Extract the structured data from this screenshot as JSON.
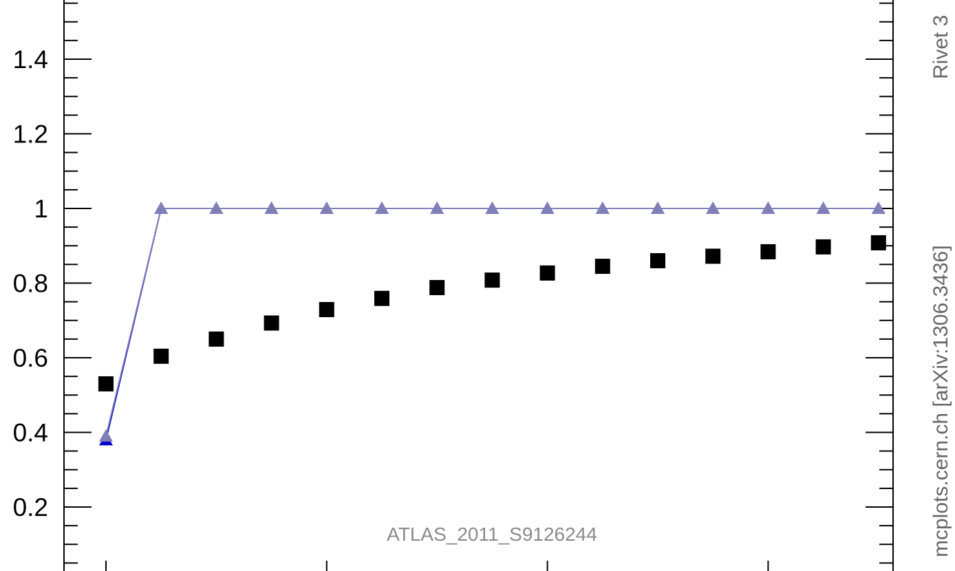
{
  "chart_data": {
    "type": "scatter",
    "title": "",
    "xlabel": "",
    "ylabel": "",
    "xlim": [
      0.5,
      15.5
    ],
    "ylim": [
      0.0,
      1.6
    ],
    "x_ticks": [
      1,
      5,
      9,
      13
    ],
    "y_ticks": [
      0.2,
      0.4,
      0.6,
      0.8,
      1.0,
      1.2,
      1.4
    ],
    "y_tick_labels": [
      "0.2",
      "0.4",
      "0.6",
      "0.8",
      "1",
      "1.2",
      "1.4"
    ],
    "x": [
      1,
      2,
      3,
      4,
      5,
      6,
      7,
      8,
      9,
      10,
      11,
      12,
      13,
      14,
      15
    ],
    "series": [
      {
        "marker": "square",
        "color": "#000000",
        "line": false,
        "values": [
          0.53,
          0.604,
          0.65,
          0.693,
          0.729,
          0.759,
          0.788,
          0.808,
          0.827,
          0.845,
          0.86,
          0.872,
          0.884,
          0.897,
          0.908
        ]
      },
      {
        "marker": "triangle",
        "color": "#8080b8",
        "line": true,
        "values": [
          0.39,
          1,
          1,
          1,
          1,
          1,
          1,
          1,
          1,
          1,
          1,
          1,
          1,
          1,
          1
        ]
      },
      {
        "marker": "triangle",
        "color": "#0000cc",
        "line": true,
        "values": [
          0.38,
          1,
          1,
          1,
          1,
          1,
          1,
          1,
          1,
          1,
          1,
          1,
          1,
          1,
          1
        ]
      }
    ],
    "grid": false,
    "annotation": "ATLAS_2011_S9126244"
  },
  "side_labels": {
    "rivet": "Rivet 3",
    "mcplots": "mcplots.cern.ch [arXiv:1306.3436]"
  },
  "colors": {
    "axis": "#000000",
    "side_text": "#666666",
    "annotation": "#8a8a8a"
  }
}
